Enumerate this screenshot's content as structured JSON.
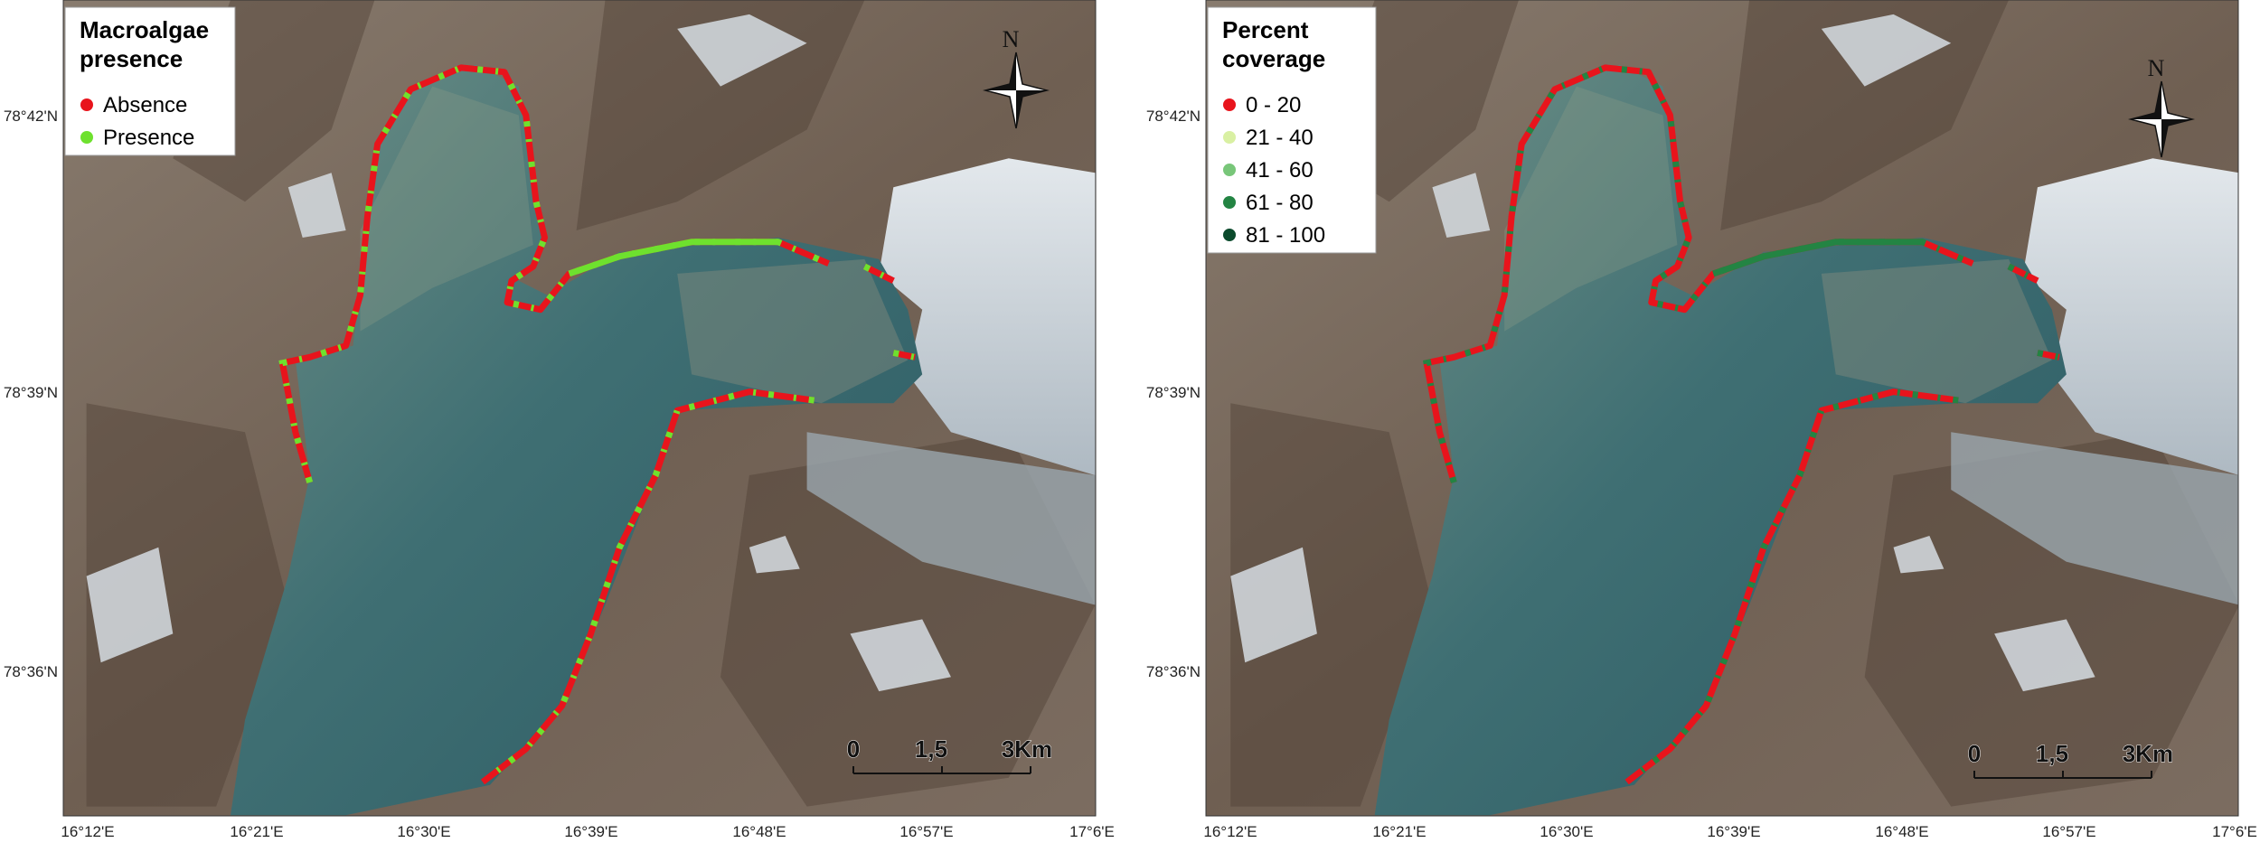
{
  "panels": [
    {
      "legend": {
        "title_lines": [
          "Macroalgae",
          "presence"
        ],
        "items": [
          {
            "label": "Absence",
            "color": "#e8141c"
          },
          {
            "label": "Presence",
            "color": "#6ee12e"
          }
        ]
      },
      "lat_labels": [
        "78°42'N",
        "78°39'N",
        "78°36'N"
      ],
      "lon_labels": [
        "16°12'E",
        "16°21'E",
        "16°30'E",
        "16°39'E",
        "16°48'E",
        "16°57'E",
        "17°6'E"
      ],
      "scale_labels": [
        "0",
        "1,5",
        "3Km"
      ],
      "north": "N"
    },
    {
      "legend": {
        "title_lines": [
          "Percent",
          "coverage"
        ],
        "items": [
          {
            "label": "0 - 20",
            "color": "#e8141c"
          },
          {
            "label": "21 - 40",
            "color": "#d9f0a3"
          },
          {
            "label": "41 - 60",
            "color": "#78c679"
          },
          {
            "label": "61 - 80",
            "color": "#238443"
          },
          {
            "label": "81 - 100",
            "color": "#0b4a2c"
          }
        ]
      },
      "lat_labels": [
        "78°42'N",
        "78°39'N",
        "78°36'N"
      ],
      "lon_labels": [
        "16°12'E",
        "16°21'E",
        "16°30'E",
        "16°39'E",
        "16°48'E",
        "16°57'E",
        "17°6'E"
      ],
      "scale_labels": [
        "0",
        "1,5",
        "3Km"
      ],
      "north": "N"
    }
  ]
}
